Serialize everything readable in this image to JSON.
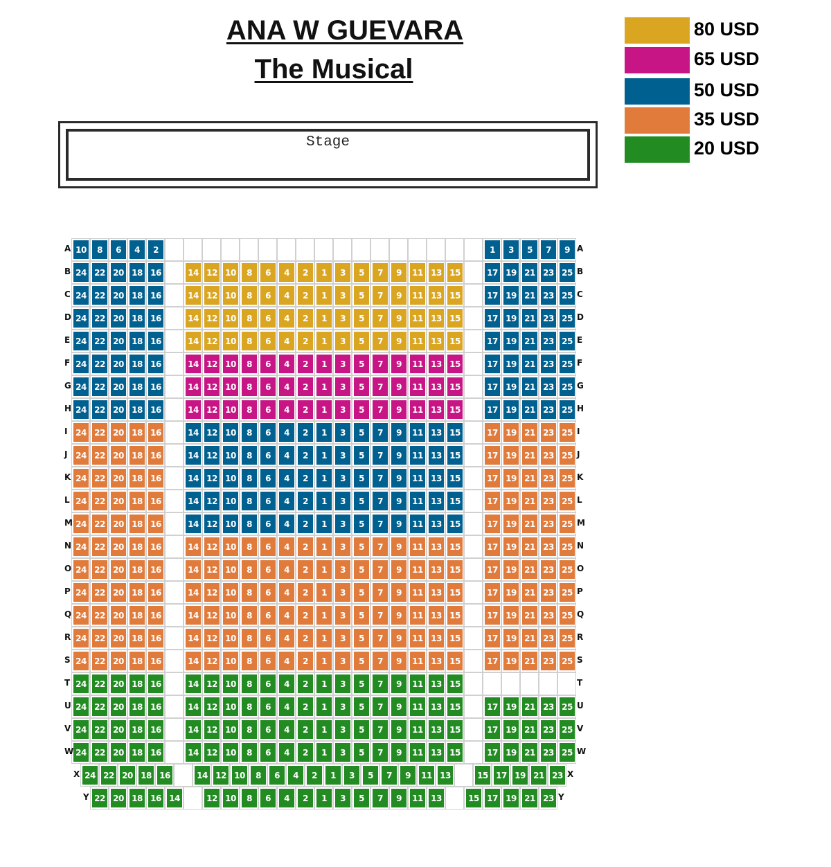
{
  "title": {
    "line1": "ANA W GUEVARA",
    "line2": "The Musical"
  },
  "stage": {
    "label": "Stage"
  },
  "tiers": {
    "gold": {
      "price": "80 USD",
      "color": "#DAA520"
    },
    "magenta": {
      "price": "65 USD",
      "color": "#C71585"
    },
    "blue": {
      "price": "50 USD",
      "color": "#006090"
    },
    "orange": {
      "price": "35 USD",
      "color": "#E07B3C"
    },
    "green": {
      "price": "20 USD",
      "color": "#228B22"
    }
  },
  "legend": [
    {
      "tier": "gold",
      "label": "80 USD"
    },
    {
      "tier": "magenta",
      "label": "65 USD"
    },
    {
      "tier": "blue",
      "label": "50 USD"
    },
    {
      "tier": "orange",
      "label": "35 USD"
    },
    {
      "tier": "green",
      "label": "20 USD"
    }
  ],
  "rows": [
    {
      "label": "A",
      "left": {
        "tier": "blue",
        "seats": [
          10,
          8,
          6,
          4,
          2
        ]
      },
      "center": {
        "tier": null,
        "empty": 15
      },
      "right": {
        "tier": "blue",
        "seats": [
          1,
          3,
          5,
          7,
          9
        ]
      }
    },
    {
      "label": "B",
      "left": {
        "tier": "blue",
        "seats": [
          24,
          22,
          20,
          18,
          16
        ]
      },
      "center": {
        "tier": "gold",
        "seats": [
          14,
          12,
          10,
          8,
          6,
          4,
          2,
          1,
          3,
          5,
          7,
          9,
          11,
          13,
          15
        ]
      },
      "right": {
        "tier": "blue",
        "seats": [
          17,
          19,
          21,
          23,
          25
        ]
      }
    },
    {
      "label": "C",
      "left": {
        "tier": "blue",
        "seats": [
          24,
          22,
          20,
          18,
          16
        ]
      },
      "center": {
        "tier": "gold",
        "seats": [
          14,
          12,
          10,
          8,
          6,
          4,
          2,
          1,
          3,
          5,
          7,
          9,
          11,
          13,
          15
        ]
      },
      "right": {
        "tier": "blue",
        "seats": [
          17,
          19,
          21,
          23,
          25
        ]
      }
    },
    {
      "label": "D",
      "left": {
        "tier": "blue",
        "seats": [
          24,
          22,
          20,
          18,
          16
        ]
      },
      "center": {
        "tier": "gold",
        "seats": [
          14,
          12,
          10,
          8,
          6,
          4,
          2,
          1,
          3,
          5,
          7,
          9,
          11,
          13,
          15
        ]
      },
      "right": {
        "tier": "blue",
        "seats": [
          17,
          19,
          21,
          23,
          25
        ]
      }
    },
    {
      "label": "E",
      "left": {
        "tier": "blue",
        "seats": [
          24,
          22,
          20,
          18,
          16
        ]
      },
      "center": {
        "tier": "gold",
        "seats": [
          14,
          12,
          10,
          8,
          6,
          4,
          2,
          1,
          3,
          5,
          7,
          9,
          11,
          13,
          15
        ]
      },
      "right": {
        "tier": "blue",
        "seats": [
          17,
          19,
          21,
          23,
          25
        ]
      }
    },
    {
      "label": "F",
      "left": {
        "tier": "blue",
        "seats": [
          24,
          22,
          20,
          18,
          16
        ]
      },
      "center": {
        "tier": "magenta",
        "seats": [
          14,
          12,
          10,
          8,
          6,
          4,
          2,
          1,
          3,
          5,
          7,
          9,
          11,
          13,
          15
        ]
      },
      "right": {
        "tier": "blue",
        "seats": [
          17,
          19,
          21,
          23,
          25
        ]
      }
    },
    {
      "label": "G",
      "left": {
        "tier": "blue",
        "seats": [
          24,
          22,
          20,
          18,
          16
        ]
      },
      "center": {
        "tier": "magenta",
        "seats": [
          14,
          12,
          10,
          8,
          6,
          4,
          2,
          1,
          3,
          5,
          7,
          9,
          11,
          13,
          15
        ]
      },
      "right": {
        "tier": "blue",
        "seats": [
          17,
          19,
          21,
          23,
          25
        ]
      }
    },
    {
      "label": "H",
      "left": {
        "tier": "blue",
        "seats": [
          24,
          22,
          20,
          18,
          16
        ]
      },
      "center": {
        "tier": "magenta",
        "seats": [
          14,
          12,
          10,
          8,
          6,
          4,
          2,
          1,
          3,
          5,
          7,
          9,
          11,
          13,
          15
        ]
      },
      "right": {
        "tier": "blue",
        "seats": [
          17,
          19,
          21,
          23,
          25
        ]
      }
    },
    {
      "label": "I",
      "left": {
        "tier": "orange",
        "seats": [
          24,
          22,
          20,
          18,
          16
        ]
      },
      "center": {
        "tier": "blue",
        "seats": [
          14,
          12,
          10,
          8,
          6,
          4,
          2,
          1,
          3,
          5,
          7,
          9,
          11,
          13,
          15
        ]
      },
      "right": {
        "tier": "orange",
        "seats": [
          17,
          19,
          21,
          23,
          25
        ]
      }
    },
    {
      "label": "J",
      "left": {
        "tier": "orange",
        "seats": [
          24,
          22,
          20,
          18,
          16
        ]
      },
      "center": {
        "tier": "blue",
        "seats": [
          14,
          12,
          10,
          8,
          6,
          4,
          2,
          1,
          3,
          5,
          7,
          9,
          11,
          13,
          15
        ]
      },
      "right": {
        "tier": "orange",
        "seats": [
          17,
          19,
          21,
          23,
          25
        ]
      }
    },
    {
      "label": "K",
      "left": {
        "tier": "orange",
        "seats": [
          24,
          22,
          20,
          18,
          16
        ]
      },
      "center": {
        "tier": "blue",
        "seats": [
          14,
          12,
          10,
          8,
          6,
          4,
          2,
          1,
          3,
          5,
          7,
          9,
          11,
          13,
          15
        ]
      },
      "right": {
        "tier": "orange",
        "seats": [
          17,
          19,
          21,
          23,
          25
        ]
      }
    },
    {
      "label": "L",
      "left": {
        "tier": "orange",
        "seats": [
          24,
          22,
          20,
          18,
          16
        ]
      },
      "center": {
        "tier": "blue",
        "seats": [
          14,
          12,
          10,
          8,
          6,
          4,
          2,
          1,
          3,
          5,
          7,
          9,
          11,
          13,
          15
        ]
      },
      "right": {
        "tier": "orange",
        "seats": [
          17,
          19,
          21,
          23,
          25
        ]
      }
    },
    {
      "label": "M",
      "left": {
        "tier": "orange",
        "seats": [
          24,
          22,
          20,
          18,
          16
        ]
      },
      "center": {
        "tier": "blue",
        "seats": [
          14,
          12,
          10,
          8,
          6,
          4,
          2,
          1,
          3,
          5,
          7,
          9,
          11,
          13,
          15
        ]
      },
      "right": {
        "tier": "orange",
        "seats": [
          17,
          19,
          21,
          23,
          25
        ]
      }
    },
    {
      "label": "N",
      "left": {
        "tier": "orange",
        "seats": [
          24,
          22,
          20,
          18,
          16
        ]
      },
      "center": {
        "tier": "orange",
        "seats": [
          14,
          12,
          10,
          8,
          6,
          4,
          2,
          1,
          3,
          5,
          7,
          9,
          11,
          13,
          15
        ]
      },
      "right": {
        "tier": "orange",
        "seats": [
          17,
          19,
          21,
          23,
          25
        ]
      }
    },
    {
      "label": "O",
      "left": {
        "tier": "orange",
        "seats": [
          24,
          22,
          20,
          18,
          16
        ]
      },
      "center": {
        "tier": "orange",
        "seats": [
          14,
          12,
          10,
          8,
          6,
          4,
          2,
          1,
          3,
          5,
          7,
          9,
          11,
          13,
          15
        ]
      },
      "right": {
        "tier": "orange",
        "seats": [
          17,
          19,
          21,
          23,
          25
        ]
      }
    },
    {
      "label": "P",
      "left": {
        "tier": "orange",
        "seats": [
          24,
          22,
          20,
          18,
          16
        ]
      },
      "center": {
        "tier": "orange",
        "seats": [
          14,
          12,
          10,
          8,
          6,
          4,
          2,
          1,
          3,
          5,
          7,
          9,
          11,
          13,
          15
        ]
      },
      "right": {
        "tier": "orange",
        "seats": [
          17,
          19,
          21,
          23,
          25
        ]
      }
    },
    {
      "label": "Q",
      "left": {
        "tier": "orange",
        "seats": [
          24,
          22,
          20,
          18,
          16
        ]
      },
      "center": {
        "tier": "orange",
        "seats": [
          14,
          12,
          10,
          8,
          6,
          4,
          2,
          1,
          3,
          5,
          7,
          9,
          11,
          13,
          15
        ]
      },
      "right": {
        "tier": "orange",
        "seats": [
          17,
          19,
          21,
          23,
          25
        ]
      }
    },
    {
      "label": "R",
      "left": {
        "tier": "orange",
        "seats": [
          24,
          22,
          20,
          18,
          16
        ]
      },
      "center": {
        "tier": "orange",
        "seats": [
          14,
          12,
          10,
          8,
          6,
          4,
          2,
          1,
          3,
          5,
          7,
          9,
          11,
          13,
          15
        ]
      },
      "right": {
        "tier": "orange",
        "seats": [
          17,
          19,
          21,
          23,
          25
        ]
      }
    },
    {
      "label": "S",
      "left": {
        "tier": "orange",
        "seats": [
          24,
          22,
          20,
          18,
          16
        ]
      },
      "center": {
        "tier": "orange",
        "seats": [
          14,
          12,
          10,
          8,
          6,
          4,
          2,
          1,
          3,
          5,
          7,
          9,
          11,
          13,
          15
        ]
      },
      "right": {
        "tier": "orange",
        "seats": [
          17,
          19,
          21,
          23,
          25
        ]
      }
    },
    {
      "label": "T",
      "left": {
        "tier": "green",
        "seats": [
          24,
          22,
          20,
          18,
          16
        ]
      },
      "center": {
        "tier": "green",
        "seats": [
          14,
          12,
          10,
          8,
          6,
          4,
          2,
          1,
          3,
          5,
          7,
          9,
          11,
          13,
          15
        ]
      },
      "right": {
        "tier": null,
        "empty": 5
      }
    },
    {
      "label": "U",
      "left": {
        "tier": "green",
        "seats": [
          24,
          22,
          20,
          18,
          16
        ]
      },
      "center": {
        "tier": "green",
        "seats": [
          14,
          12,
          10,
          8,
          6,
          4,
          2,
          1,
          3,
          5,
          7,
          9,
          11,
          13,
          15
        ]
      },
      "right": {
        "tier": "green",
        "seats": [
          17,
          19,
          21,
          23,
          25
        ]
      }
    },
    {
      "label": "V",
      "left": {
        "tier": "green",
        "seats": [
          24,
          22,
          20,
          18,
          16
        ]
      },
      "center": {
        "tier": "green",
        "seats": [
          14,
          12,
          10,
          8,
          6,
          4,
          2,
          1,
          3,
          5,
          7,
          9,
          11,
          13,
          15
        ]
      },
      "right": {
        "tier": "green",
        "seats": [
          17,
          19,
          21,
          23,
          25
        ]
      }
    },
    {
      "label": "W",
      "left": {
        "tier": "green",
        "seats": [
          24,
          22,
          20,
          18,
          16
        ]
      },
      "center": {
        "tier": "green",
        "seats": [
          14,
          12,
          10,
          8,
          6,
          4,
          2,
          1,
          3,
          5,
          7,
          9,
          11,
          13,
          15
        ]
      },
      "right": {
        "tier": "green",
        "seats": [
          17,
          19,
          21,
          23,
          25
        ]
      }
    },
    {
      "label": "X",
      "left": {
        "tier": "green",
        "seats": [
          24,
          22,
          20,
          18,
          16
        ]
      },
      "center": {
        "tier": "green",
        "seats": [
          14,
          12,
          10,
          8,
          6,
          4,
          2,
          1,
          3,
          5,
          7,
          9,
          11,
          13
        ]
      },
      "right": {
        "tier": "green",
        "seats": [
          15,
          17,
          19,
          21,
          23
        ]
      }
    },
    {
      "label": "Y",
      "left": {
        "tier": "green",
        "seats": [
          22,
          20,
          18,
          16,
          14
        ]
      },
      "center": {
        "tier": "green",
        "seats": [
          12,
          10,
          8,
          6,
          4,
          2,
          1,
          3,
          5,
          7,
          9,
          11,
          13
        ]
      },
      "right": {
        "tier": "green",
        "seats": [
          15,
          17,
          19,
          21,
          23
        ]
      }
    }
  ]
}
